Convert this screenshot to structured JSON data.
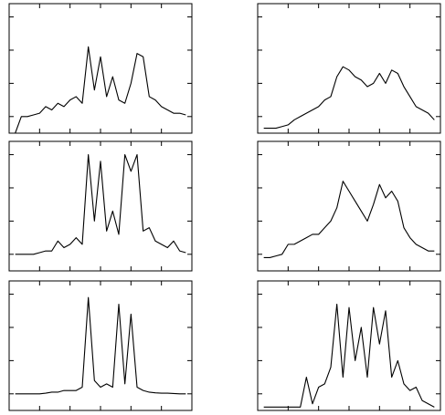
{
  "chart_data": [
    {
      "type": "line",
      "color": "#000000",
      "xlim": [
        0,
        60
      ],
      "xticks": [
        10,
        20,
        30,
        40,
        50
      ],
      "ylim": [
        -0.5,
        3.4
      ],
      "yticks": [
        0,
        1,
        2,
        3
      ],
      "x": [
        2,
        4,
        6,
        8,
        10,
        12,
        14,
        16,
        18,
        20,
        22,
        24,
        26,
        28,
        30,
        32,
        34,
        36,
        38,
        40,
        42,
        44,
        46,
        48,
        50,
        52,
        54,
        56,
        58
      ],
      "values": [
        -0.5,
        0,
        0,
        0.05,
        0.1,
        0.3,
        0.2,
        0.4,
        0.3,
        0.5,
        0.6,
        0.4,
        2.1,
        0.8,
        1.8,
        0.6,
        1.2,
        0.5,
        0.4,
        1.0,
        1.9,
        1.8,
        0.6,
        0.5,
        0.3,
        0.2,
        0.1,
        0.1,
        0.05
      ]
    },
    {
      "type": "line",
      "color": "#000000",
      "xlim": [
        0,
        60
      ],
      "xticks": [
        10,
        20,
        30,
        40,
        50
      ],
      "ylim": [
        -0.5,
        3.4
      ],
      "yticks": [
        0,
        1,
        2,
        3
      ],
      "x": [
        2,
        4,
        6,
        8,
        10,
        12,
        14,
        16,
        18,
        20,
        22,
        24,
        26,
        28,
        30,
        32,
        34,
        36,
        38,
        40,
        42,
        44,
        46,
        48,
        50,
        52,
        54,
        56,
        58
      ],
      "values": [
        -0.35,
        -0.35,
        -0.35,
        -0.3,
        -0.25,
        -0.1,
        0,
        0.1,
        0.2,
        0.3,
        0.5,
        0.6,
        1.2,
        1.5,
        1.4,
        1.2,
        1.1,
        0.9,
        1.0,
        1.3,
        1.0,
        1.4,
        1.3,
        0.9,
        0.6,
        0.3,
        0.2,
        0.1,
        -0.1
      ]
    },
    {
      "type": "line",
      "color": "#000000",
      "xlim": [
        0,
        60
      ],
      "xticks": [
        10,
        20,
        30,
        40,
        50
      ],
      "ylim": [
        -0.5,
        3.4
      ],
      "yticks": [
        0,
        1,
        2,
        3
      ],
      "x": [
        2,
        4,
        6,
        8,
        10,
        12,
        14,
        16,
        18,
        20,
        22,
        24,
        26,
        28,
        30,
        32,
        34,
        36,
        38,
        40,
        42,
        44,
        46,
        48,
        50,
        52,
        54,
        56,
        58
      ],
      "values": [
        0,
        0,
        0,
        0,
        0.05,
        0.1,
        0.1,
        0.4,
        0.2,
        0.3,
        0.5,
        0.3,
        3.0,
        1.0,
        2.8,
        0.7,
        1.3,
        0.6,
        3.0,
        2.5,
        3.0,
        0.7,
        0.8,
        0.4,
        0.3,
        0.2,
        0.4,
        0.1,
        0.05
      ]
    },
    {
      "type": "line",
      "color": "#000000",
      "xlim": [
        0,
        60
      ],
      "xticks": [
        10,
        20,
        30,
        40,
        50
      ],
      "ylim": [
        -0.5,
        3.4
      ],
      "yticks": [
        0,
        1,
        2,
        3
      ],
      "x": [
        2,
        4,
        6,
        8,
        10,
        12,
        14,
        16,
        18,
        20,
        22,
        24,
        26,
        28,
        30,
        32,
        34,
        36,
        38,
        40,
        42,
        44,
        46,
        48,
        50,
        52,
        54,
        56,
        58
      ],
      "values": [
        -0.1,
        -0.1,
        -0.05,
        0,
        0.3,
        0.3,
        0.4,
        0.5,
        0.6,
        0.6,
        0.8,
        1.0,
        1.4,
        2.2,
        1.9,
        1.6,
        1.3,
        1.0,
        1.5,
        2.1,
        1.7,
        1.9,
        1.6,
        0.8,
        0.5,
        0.3,
        0.2,
        0.1,
        0.1
      ]
    },
    {
      "type": "line",
      "color": "#000000",
      "xlim": [
        0,
        60
      ],
      "xticks": [
        10,
        20,
        30,
        40,
        50
      ],
      "ylim": [
        -0.5,
        3.4
      ],
      "yticks": [
        0,
        1,
        2,
        3
      ],
      "x": [
        2,
        4,
        6,
        8,
        10,
        12,
        14,
        16,
        18,
        20,
        22,
        24,
        26,
        28,
        30,
        32,
        34,
        36,
        38,
        40,
        42,
        44,
        46,
        48,
        50,
        52,
        54,
        56,
        58
      ],
      "values": [
        0,
        0,
        0,
        0,
        0,
        0.02,
        0.05,
        0.05,
        0.1,
        0.1,
        0.1,
        0.2,
        2.9,
        0.4,
        0.2,
        0.3,
        0.2,
        2.7,
        0.3,
        2.4,
        0.2,
        0.1,
        0.05,
        0.03,
        0.02,
        0.02,
        0.01,
        0,
        0
      ]
    },
    {
      "type": "line",
      "color": "#000000",
      "xlim": [
        0,
        60
      ],
      "xticks": [
        10,
        20,
        30,
        40,
        50
      ],
      "ylim": [
        -0.5,
        3.4
      ],
      "yticks": [
        0,
        1,
        2,
        3
      ],
      "x": [
        2,
        4,
        6,
        8,
        10,
        12,
        14,
        16,
        18,
        20,
        22,
        24,
        26,
        28,
        30,
        32,
        34,
        36,
        38,
        40,
        42,
        44,
        46,
        48,
        50,
        52,
        54,
        56,
        58
      ],
      "values": [
        -0.4,
        -0.4,
        -0.4,
        -0.4,
        -0.4,
        -0.4,
        -0.4,
        0.5,
        -0.3,
        0.2,
        0.3,
        0.8,
        2.7,
        0.5,
        2.6,
        1.0,
        2.0,
        0.5,
        2.6,
        1.5,
        2.5,
        0.5,
        1.0,
        0.3,
        0.1,
        0.2,
        -0.2,
        -0.3,
        -0.4
      ]
    }
  ]
}
